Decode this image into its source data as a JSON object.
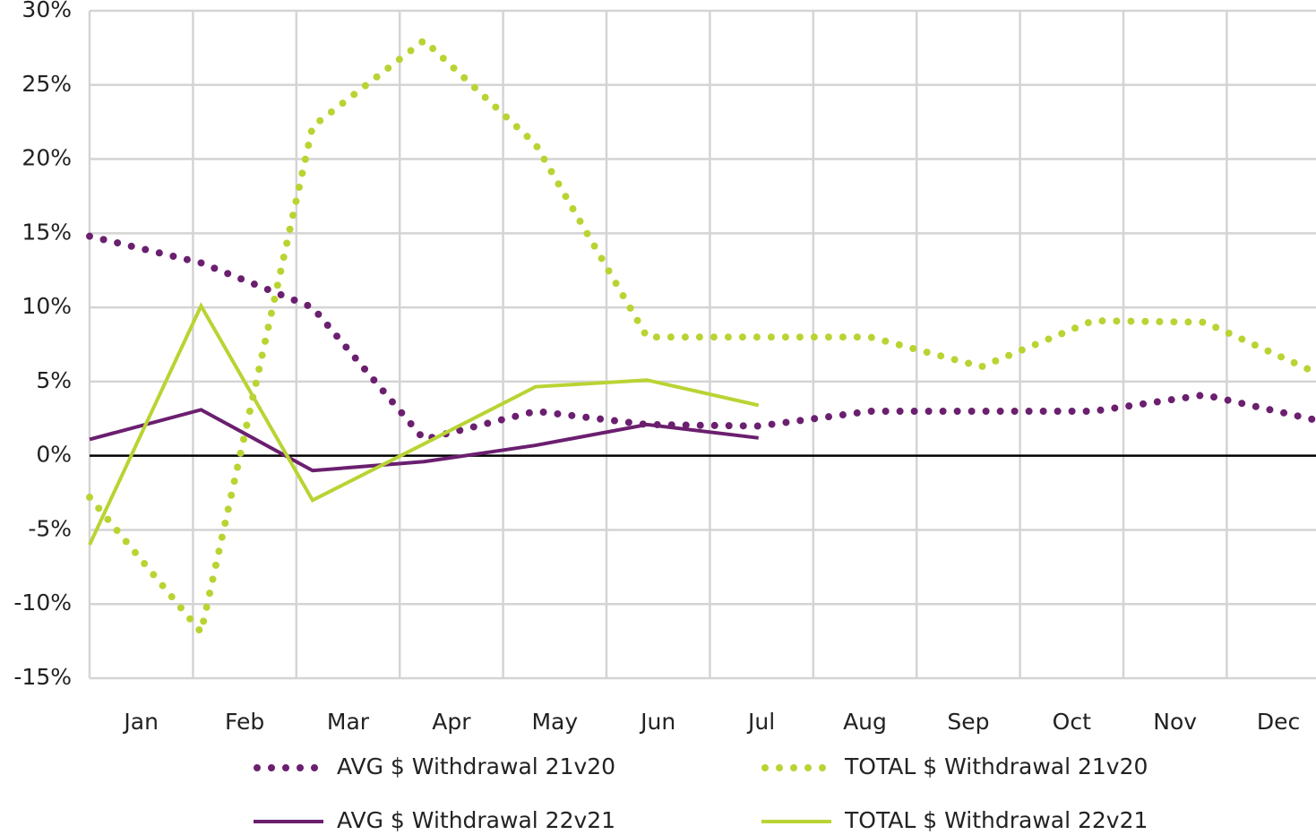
{
  "chart_data": {
    "type": "line",
    "categories": [
      "Jan",
      "Feb",
      "Mar",
      "Apr",
      "May",
      "Jun",
      "Jul",
      "Aug",
      "Sep",
      "Oct",
      "Nov",
      "Dec"
    ],
    "ylim": [
      -15,
      30
    ],
    "yticks": [
      {
        "value": -15,
        "label": "-15%"
      },
      {
        "value": -10,
        "label": "-10%"
      },
      {
        "value": -5,
        "label": "-5%"
      },
      {
        "value": 0,
        "label": "0%"
      },
      {
        "value": 5,
        "label": "5%"
      },
      {
        "value": 10,
        "label": "10%"
      },
      {
        "value": 15,
        "label": "15%"
      },
      {
        "value": 20,
        "label": "20%"
      },
      {
        "value": 25,
        "label": "25%"
      },
      {
        "value": 30,
        "label": "30%"
      }
    ],
    "grid": true,
    "legend": "bottom",
    "series": [
      {
        "name": "AVG $ Withdrawal 21v20",
        "color": "#6b1f6f",
        "style": "dotted",
        "values": [
          14.8,
          13,
          10,
          1.1,
          3,
          2.1,
          2,
          3,
          3,
          3,
          4.1,
          2.4
        ]
      },
      {
        "name": "TOTAL $ Withdrawal 21v20",
        "color": "#b8d433",
        "style": "dotted",
        "values": [
          -2.8,
          -11.9,
          22.2,
          28,
          21,
          8,
          8,
          8,
          6,
          9.1,
          9,
          5.6
        ]
      },
      {
        "name": "AVG $ Withdrawal 22v21",
        "color": "#6b1f6f",
        "style": "solid",
        "values": [
          1.1,
          3.1,
          -1,
          -0.4,
          0.7,
          2.1,
          1.2,
          null,
          null,
          null,
          null,
          null
        ]
      },
      {
        "name": "TOTAL $ Withdrawal 22v21",
        "color": "#b8d433",
        "style": "solid",
        "values": [
          -6,
          10.1,
          -3,
          0.8,
          4.65,
          5.1,
          3.4,
          null,
          null,
          null,
          null,
          null
        ]
      }
    ]
  }
}
